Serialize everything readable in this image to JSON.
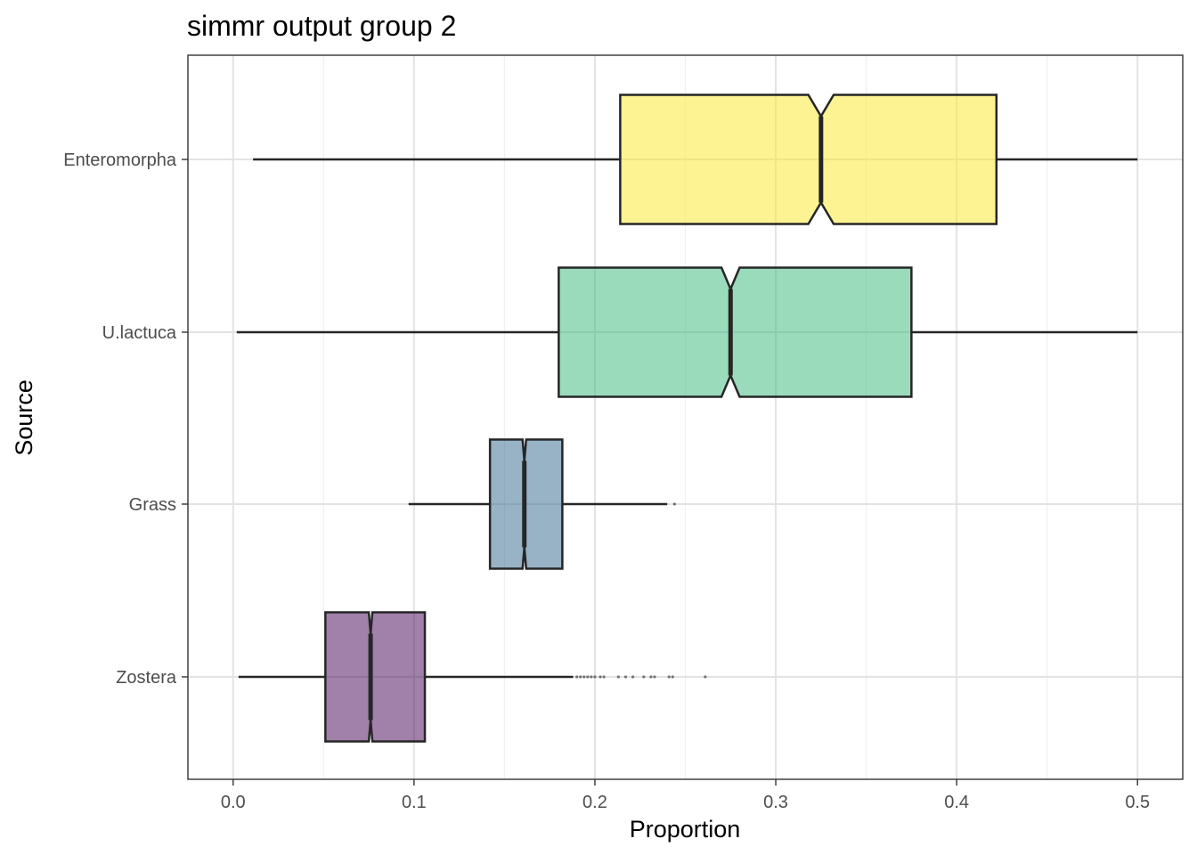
{
  "chart_data": {
    "type": "boxplot",
    "orientation": "horizontal",
    "notched": true,
    "title": "simmr output group 2",
    "xlabel": "Proportion",
    "ylabel": "Source",
    "xlim": [
      -0.025,
      0.525
    ],
    "x_ticks": [
      0.0,
      0.1,
      0.2,
      0.3,
      0.4,
      0.5
    ],
    "x_tick_labels": [
      "0.0",
      "0.1",
      "0.2",
      "0.3",
      "0.4",
      "0.5"
    ],
    "grid": true,
    "legend": "none",
    "series": [
      {
        "category": "Enteromorpha",
        "color": "#fde725",
        "whisker_low": 0.011,
        "q1": 0.214,
        "median": 0.325,
        "q3": 0.422,
        "whisker_high": 0.5,
        "notch_low": 0.318,
        "notch_high": 0.332,
        "outliers": []
      },
      {
        "category": "U.lactuca",
        "color": "#35b779",
        "whisker_low": 0.002,
        "q1": 0.18,
        "median": 0.275,
        "q3": 0.375,
        "whisker_high": 0.5,
        "notch_low": 0.27,
        "notch_high": 0.28,
        "outliers": []
      },
      {
        "category": "Grass",
        "color": "#31688e",
        "whisker_low": 0.097,
        "q1": 0.142,
        "median": 0.161,
        "q3": 0.182,
        "whisker_high": 0.24,
        "notch_low": 0.16,
        "notch_high": 0.162,
        "outliers": [
          0.244
        ]
      },
      {
        "category": "Zostera",
        "color": "#440154",
        "whisker_low": 0.003,
        "q1": 0.051,
        "median": 0.076,
        "q3": 0.106,
        "whisker_high": 0.188,
        "notch_low": 0.075,
        "notch_high": 0.077,
        "outliers": [
          0.19,
          0.192,
          0.194,
          0.196,
          0.198,
          0.2,
          0.203,
          0.205,
          0.213,
          0.217,
          0.221,
          0.227,
          0.231,
          0.233,
          0.241,
          0.243,
          0.261
        ]
      }
    ]
  }
}
